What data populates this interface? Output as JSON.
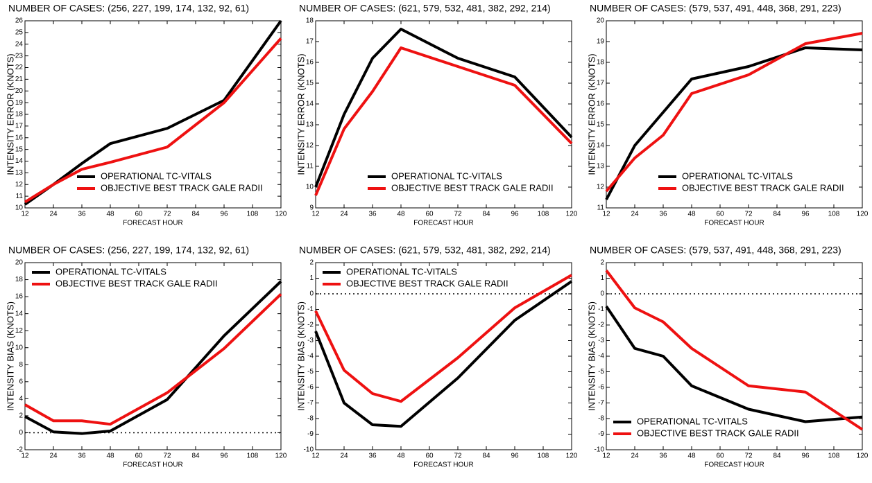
{
  "chart_data": [
    {
      "type": "line",
      "title": "NUMBER OF CASES: (256, 227, 199, 174, 132, 92, 61)",
      "xlabel": "FORECAST HOUR",
      "ylabel": "INTENSITY ERROR (KNOTS)",
      "x": [
        12,
        24,
        36,
        48,
        72,
        96,
        120
      ],
      "xlim": [
        12,
        120
      ],
      "xticks": [
        12,
        24,
        36,
        48,
        60,
        72,
        84,
        96,
        108,
        120
      ],
      "ylim": [
        10,
        26
      ],
      "yticks": [
        10,
        11,
        12,
        13,
        14,
        15,
        16,
        17,
        18,
        19,
        20,
        21,
        22,
        23,
        24,
        25,
        26
      ],
      "legend": "lower right",
      "zero_line": false,
      "series": [
        {
          "name": "OPERATIONAL TC-VITALS",
          "color": "#000000",
          "values": [
            10.3,
            12.0,
            13.8,
            15.5,
            16.8,
            19.2,
            26.0
          ]
        },
        {
          "name": "OBJECTIVE BEST TRACK GALE RADII",
          "color": "#ee1111",
          "values": [
            10.5,
            12.0,
            13.3,
            13.9,
            15.2,
            19.0,
            24.5
          ]
        }
      ]
    },
    {
      "type": "line",
      "title": "NUMBER OF CASES: (621, 579, 532, 481, 382, 292, 214)",
      "xlabel": "FORECAST HOUR",
      "ylabel": "INTENSITY ERROR (KNOTS)",
      "x": [
        12,
        24,
        36,
        48,
        72,
        96,
        120
      ],
      "xlim": [
        12,
        120
      ],
      "xticks": [
        12,
        24,
        36,
        48,
        60,
        72,
        84,
        96,
        108,
        120
      ],
      "ylim": [
        9,
        18
      ],
      "yticks": [
        9,
        10,
        11,
        12,
        13,
        14,
        15,
        16,
        17,
        18
      ],
      "legend": "lower right",
      "zero_line": false,
      "series": [
        {
          "name": "OPERATIONAL TC-VITALS",
          "color": "#000000",
          "values": [
            10.0,
            13.5,
            16.2,
            17.6,
            16.2,
            15.3,
            12.4
          ]
        },
        {
          "name": "OBJECTIVE BEST TRACK GALE RADII",
          "color": "#ee1111",
          "values": [
            9.6,
            12.8,
            14.6,
            16.7,
            15.8,
            14.9,
            12.1
          ]
        }
      ]
    },
    {
      "type": "line",
      "title": "NUMBER OF CASES: (579, 537, 491, 448, 368, 291, 223)",
      "xlabel": "FORECAST HOUR",
      "ylabel": "INTENSITY ERROR (KNOTS)",
      "x": [
        12,
        24,
        36,
        48,
        72,
        96,
        120
      ],
      "xlim": [
        12,
        120
      ],
      "xticks": [
        12,
        24,
        36,
        48,
        60,
        72,
        84,
        96,
        108,
        120
      ],
      "ylim": [
        11,
        20
      ],
      "yticks": [
        11,
        12,
        13,
        14,
        15,
        16,
        17,
        18,
        19,
        20
      ],
      "legend": "lower right",
      "zero_line": false,
      "series": [
        {
          "name": "OPERATIONAL TC-VITALS",
          "color": "#000000",
          "values": [
            11.4,
            14.0,
            15.6,
            17.2,
            17.8,
            18.7,
            18.6
          ]
        },
        {
          "name": "OBJECTIVE BEST TRACK GALE RADII",
          "color": "#ee1111",
          "values": [
            11.8,
            13.4,
            14.5,
            16.5,
            17.4,
            18.9,
            19.4
          ]
        }
      ]
    },
    {
      "type": "line",
      "title": "NUMBER OF CASES: (256, 227, 199, 174, 132, 92, 61)",
      "xlabel": "FORECAST HOUR",
      "ylabel": "INTENSITY BIAS (KNOTS)",
      "x": [
        12,
        24,
        36,
        48,
        72,
        96,
        120
      ],
      "xlim": [
        12,
        120
      ],
      "xticks": [
        12,
        24,
        36,
        48,
        60,
        72,
        84,
        96,
        108,
        120
      ],
      "ylim": [
        -2,
        20
      ],
      "yticks": [
        -2,
        0,
        2,
        4,
        6,
        8,
        10,
        12,
        14,
        16,
        18,
        20
      ],
      "legend": "upper left",
      "zero_line": true,
      "series": [
        {
          "name": "OPERATIONAL TC-VITALS",
          "color": "#000000",
          "values": [
            1.9,
            0.1,
            -0.1,
            0.2,
            3.9,
            11.4,
            17.8
          ]
        },
        {
          "name": "OBJECTIVE BEST TRACK GALE  RADII",
          "color": "#ee1111",
          "values": [
            3.3,
            1.4,
            1.4,
            1.0,
            4.7,
            9.9,
            16.3
          ]
        }
      ]
    },
    {
      "type": "line",
      "title": "NUMBER OF CASES: (621, 579, 532, 481, 382, 292, 214)",
      "xlabel": "FORECAST HOUR",
      "ylabel": "INTENSITY BIAS (KNOTS)",
      "x": [
        12,
        24,
        36,
        48,
        72,
        96,
        120
      ],
      "xlim": [
        12,
        120
      ],
      "xticks": [
        12,
        24,
        36,
        48,
        60,
        72,
        84,
        96,
        108,
        120
      ],
      "ylim": [
        -10,
        2
      ],
      "yticks": [
        -10,
        -9,
        -8,
        -7,
        -6,
        -5,
        -4,
        -3,
        -2,
        -1,
        0,
        1,
        2
      ],
      "legend": "upper left",
      "zero_line": true,
      "series": [
        {
          "name": "OPERATIONAL TC-VITALS",
          "color": "#000000",
          "values": [
            -2.4,
            -7.0,
            -8.4,
            -8.5,
            -5.4,
            -1.7,
            0.8
          ]
        },
        {
          "name": "OBJECTIVE BEST TRACK GALE  RADII",
          "color": "#ee1111",
          "values": [
            -1.1,
            -4.9,
            -6.4,
            -6.9,
            -4.1,
            -0.9,
            1.2
          ]
        }
      ]
    },
    {
      "type": "line",
      "title": "NUMBER OF CASES: (579, 537, 491, 448, 368, 291, 223)",
      "xlabel": "FORECAST HOUR",
      "ylabel": "INTENSITY BIAS (KNOTS)",
      "x": [
        12,
        24,
        36,
        48,
        72,
        96,
        120
      ],
      "xlim": [
        12,
        120
      ],
      "xticks": [
        12,
        24,
        36,
        48,
        60,
        72,
        84,
        96,
        108,
        120
      ],
      "ylim": [
        -10,
        2
      ],
      "yticks": [
        -10,
        -9,
        -8,
        -7,
        -6,
        -5,
        -4,
        -3,
        -2,
        -1,
        0,
        1,
        2
      ],
      "legend": "lower left",
      "zero_line": true,
      "series": [
        {
          "name": "OPERATIONAL TC-VITALS",
          "color": "#000000",
          "values": [
            -0.8,
            -3.5,
            -4.0,
            -5.9,
            -7.4,
            -8.2,
            -7.9
          ]
        },
        {
          "name": "OBJECTIVE BEST TRACK GALE RADII",
          "color": "#ee1111",
          "values": [
            1.5,
            -0.9,
            -1.8,
            -3.5,
            -5.9,
            -6.3,
            -8.7
          ]
        }
      ]
    }
  ]
}
